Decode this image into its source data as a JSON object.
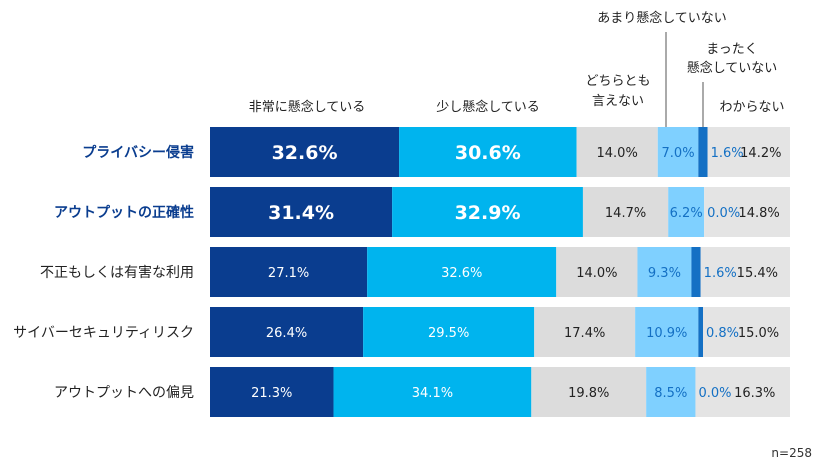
{
  "chart_data": {
    "type": "stacked-bar-horizontal",
    "unit": "%",
    "note": "n=258",
    "categories": [
      "プライバシー侵害",
      "アウトプットの正確性",
      "不正もしくは有害な利用",
      "サイバーセキュリティリスク",
      "アウトプットへの偏見"
    ],
    "highlighted": [
      true,
      true,
      false,
      false,
      false
    ],
    "series": [
      {
        "name": "非常に懸念している",
        "color": "#0a3d8f",
        "values": [
          32.6,
          31.4,
          27.1,
          26.4,
          21.3
        ]
      },
      {
        "name": "少し懸念している",
        "color": "#00b4ee",
        "values": [
          30.6,
          32.9,
          32.6,
          29.5,
          34.1
        ]
      },
      {
        "name": "どちらとも\n言えない",
        "color": "#dcdcdc",
        "values": [
          14.0,
          14.7,
          14.0,
          17.4,
          19.8
        ]
      },
      {
        "name": "あまり懸念していない",
        "color": "#7fd0ff",
        "values": [
          7.0,
          6.2,
          9.3,
          10.9,
          8.5
        ]
      },
      {
        "name": "まったく\n懸念していない",
        "color": "#1470c4",
        "values": [
          1.6,
          0.0,
          1.6,
          0.8,
          0.0
        ]
      },
      {
        "name": "わからない",
        "color": "#e4e4e4",
        "values": [
          14.2,
          14.8,
          15.4,
          15.0,
          16.3
        ]
      }
    ]
  }
}
